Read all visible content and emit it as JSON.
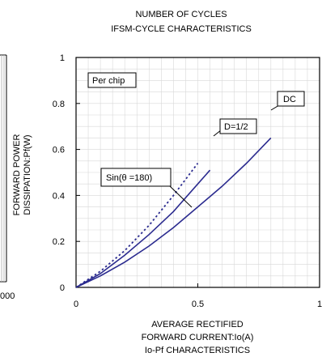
{
  "header": {
    "caption_top": "NUMBER OF CYCLES",
    "title": "IFSM-CYCLE CHARACTERISTICS"
  },
  "left_fragment": {
    "tick_text": "000"
  },
  "colors": {
    "curve": "#2b2b8f",
    "axis": "#000000",
    "grid": "#d8d8d8"
  },
  "chart_data": {
    "type": "line",
    "title": "Io-Pf CHARACTERISTICS",
    "xlabel_lines": [
      "AVERAGE RECTIFIED",
      "FORWARD CURRENT:Io(A)"
    ],
    "ylabel_lines": [
      "FORWARD POWER",
      "DISSIPATION:Pf(W)"
    ],
    "xlim": [
      0,
      1
    ],
    "ylim": [
      0,
      1
    ],
    "x_ticks": [
      "0",
      "0.5",
      "1"
    ],
    "y_ticks": [
      "0",
      "0.2",
      "0.4",
      "0.6",
      "0.8",
      "1"
    ],
    "x_tick_values": [
      0,
      0.5,
      1
    ],
    "y_tick_values": [
      0,
      0.2,
      0.4,
      0.6,
      0.8,
      1
    ],
    "grid": true,
    "annotations": [
      "Per chip",
      "DC",
      "D=1/2",
      "Sin(θ =180)"
    ],
    "series": [
      {
        "name": "DC",
        "style": "solid",
        "x": [
          0,
          0.1,
          0.2,
          0.3,
          0.4,
          0.5,
          0.6,
          0.7,
          0.8
        ],
        "y": [
          0,
          0.05,
          0.11,
          0.18,
          0.26,
          0.35,
          0.44,
          0.54,
          0.65
        ]
      },
      {
        "name": "D=1/2",
        "style": "solid",
        "x": [
          0,
          0.1,
          0.2,
          0.3,
          0.4,
          0.5,
          0.55
        ],
        "y": [
          0,
          0.06,
          0.14,
          0.23,
          0.33,
          0.45,
          0.51
        ]
      },
      {
        "name": "Sin(θ =180)",
        "style": "dotted",
        "x": [
          0,
          0.1,
          0.2,
          0.3,
          0.4,
          0.5
        ],
        "y": [
          0,
          0.07,
          0.16,
          0.27,
          0.4,
          0.54
        ]
      }
    ]
  }
}
